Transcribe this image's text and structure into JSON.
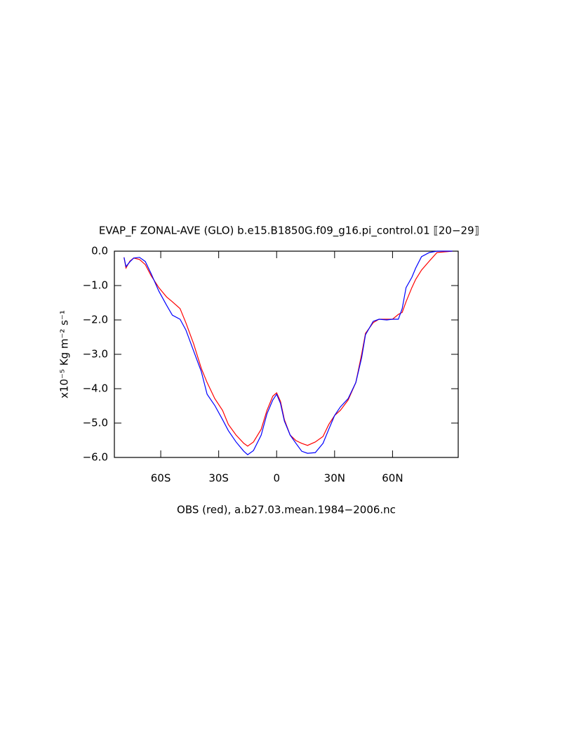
{
  "chart_data": {
    "type": "line",
    "title": "EVAP_F ZONAL-AVE (GLO) b.e15.B1850G.f09_g16.pi_control.01 ⟦20−29⟧",
    "x_label": "OBS (red), a.b27.03.mean.1984−2006.nc",
    "y_label": "x10⁻⁵ Kg m⁻² s⁻¹",
    "x": [
      -79,
      -78,
      -76,
      -74,
      -71,
      -68,
      -65,
      -61,
      -57,
      -54,
      -50,
      -47,
      -43,
      -39,
      -36,
      -32,
      -28,
      -25,
      -21,
      -17,
      -15,
      -12,
      -8,
      -5,
      -2,
      0,
      2,
      4,
      7,
      10,
      13,
      16,
      20,
      24,
      27,
      30,
      33,
      37,
      41,
      44,
      46,
      50,
      53,
      57,
      60,
      63,
      65,
      67,
      70,
      72,
      75,
      79,
      83,
      91
    ],
    "series": [
      {
        "color": "#ff0000",
        "values": [
          -0.18,
          -0.49,
          -0.29,
          -0.2,
          -0.24,
          -0.39,
          -0.71,
          -1.06,
          -1.33,
          -1.47,
          -1.67,
          -2.08,
          -2.69,
          -3.41,
          -3.82,
          -4.29,
          -4.63,
          -5.04,
          -5.35,
          -5.59,
          -5.67,
          -5.55,
          -5.18,
          -4.63,
          -4.22,
          -4.12,
          -4.37,
          -4.9,
          -5.35,
          -5.51,
          -5.59,
          -5.65,
          -5.55,
          -5.39,
          -5.04,
          -4.78,
          -4.63,
          -4.33,
          -3.82,
          -3.0,
          -2.39,
          -2.08,
          -1.98,
          -1.98,
          -1.98,
          -1.84,
          -1.78,
          -1.47,
          -1.06,
          -0.82,
          -0.55,
          -0.29,
          -0.04,
          0
        ]
      },
      {
        "color": "#0000ff",
        "values": [
          -0.18,
          -0.45,
          -0.31,
          -0.2,
          -0.18,
          -0.3,
          -0.65,
          -1.16,
          -1.57,
          -1.86,
          -1.98,
          -2.29,
          -2.9,
          -3.5,
          -4.16,
          -4.49,
          -4.9,
          -5.22,
          -5.55,
          -5.82,
          -5.92,
          -5.8,
          -5.35,
          -4.73,
          -4.33,
          -4.16,
          -4.43,
          -4.94,
          -5.35,
          -5.59,
          -5.82,
          -5.88,
          -5.86,
          -5.59,
          -5.18,
          -4.78,
          -4.53,
          -4.29,
          -3.82,
          -3.1,
          -2.43,
          -2.04,
          -1.98,
          -2.0,
          -1.98,
          -1.98,
          -1.67,
          -1.06,
          -0.76,
          -0.49,
          -0.16,
          -0.04,
          0,
          0
        ]
      }
    ],
    "xlim": [
      -84,
      94
    ],
    "xticks": [
      {
        "value": -60,
        "label": "60S"
      },
      {
        "value": -30,
        "label": "30S"
      },
      0,
      {
        "value": 30,
        "label": "30N"
      },
      {
        "value": 60,
        "label": "60N"
      }
    ],
    "ylim": [
      -6,
      0
    ],
    "yticks": [
      {
        "value": 0,
        "label": "0.0"
      },
      {
        "value": -1,
        "label": "−1.0"
      },
      {
        "value": -2,
        "label": "−2.0"
      },
      {
        "value": -3,
        "label": "−3.0"
      },
      {
        "value": -4,
        "label": "−4.0"
      },
      {
        "value": -5,
        "label": "−5.0"
      },
      {
        "value": -6,
        "label": "−6.0"
      }
    ],
    "grid": false
  }
}
